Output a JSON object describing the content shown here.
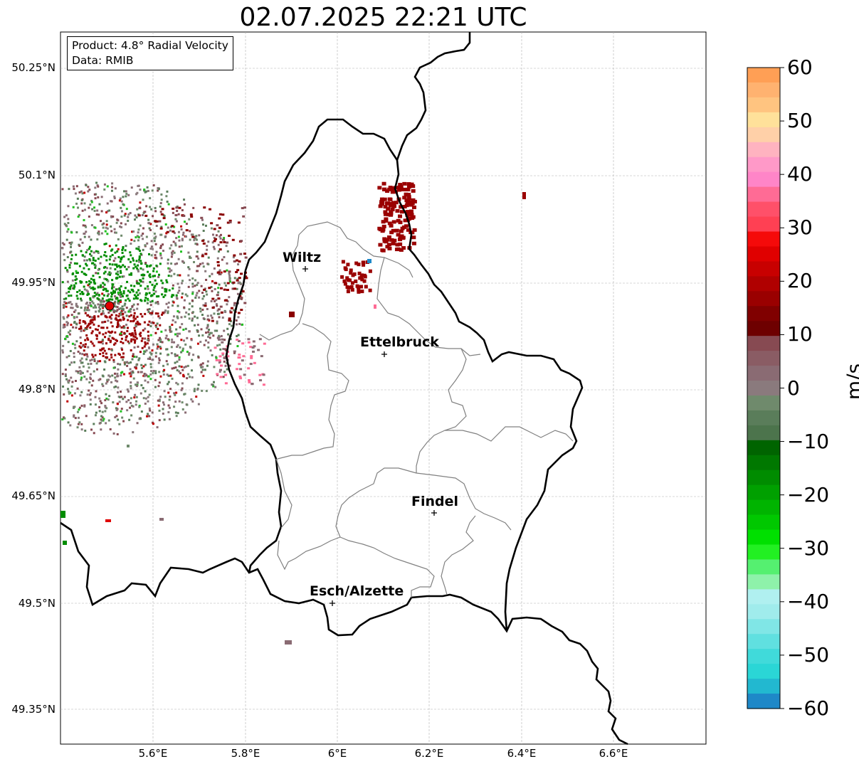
{
  "title": "02.07.2025 22:21 UTC",
  "info_box": {
    "product": "Product: 4.8° Radial Velocity",
    "data": "Data: RMIB"
  },
  "axes": {
    "lat_ticks": [
      "50.25°N",
      "50.1°N",
      "49.95°N",
      "49.8°N",
      "49.65°N",
      "49.5°N",
      "49.35°N"
    ],
    "lon_ticks": [
      "5.6°E",
      "5.8°E",
      "6°E",
      "6.2°E",
      "6.4°E",
      "6.6°E"
    ],
    "grid": true
  },
  "cities": [
    {
      "name": "Wiltz"
    },
    {
      "name": "Ettelbruck"
    },
    {
      "name": "Findel"
    },
    {
      "name": "Esch/Alzette"
    }
  ],
  "colorbar": {
    "label": "m/s",
    "min": -60,
    "max": 60,
    "tick_labels": [
      "60",
      "50",
      "40",
      "30",
      "20",
      "10",
      "0",
      "−10",
      "−20",
      "−30",
      "−40",
      "−50",
      "−60"
    ],
    "colors_top_to_bottom": [
      "#ff9f55",
      "#ffb270",
      "#ffc480",
      "#ffe19a",
      "#ffd0a8",
      "#ffb3c0",
      "#ff99c8",
      "#ff85c8",
      "#ff6b95",
      "#ff5069",
      "#ff4053",
      "#f50a0a",
      "#e00000",
      "#c80000",
      "#b00000",
      "#9a0000",
      "#800000",
      "#6e0000",
      "#874a52",
      "#8a5c64",
      "#8a6b73",
      "#8a7a7d",
      "#6f8a6c",
      "#5a7d5a",
      "#4c744c",
      "#006400",
      "#007800",
      "#008c00",
      "#00a000",
      "#00b400",
      "#00c800",
      "#00e000",
      "#22f022",
      "#55f070",
      "#8ef2aa",
      "#b0f0f0",
      "#a0ecec",
      "#80e6e6",
      "#60e0e0",
      "#40dada",
      "#2ad6d6",
      "#22b8d0",
      "#1e88c8"
    ]
  },
  "colors": {
    "border_national": "#000000",
    "border_canton": "#808080",
    "gridline": "#b0b0b0"
  }
}
